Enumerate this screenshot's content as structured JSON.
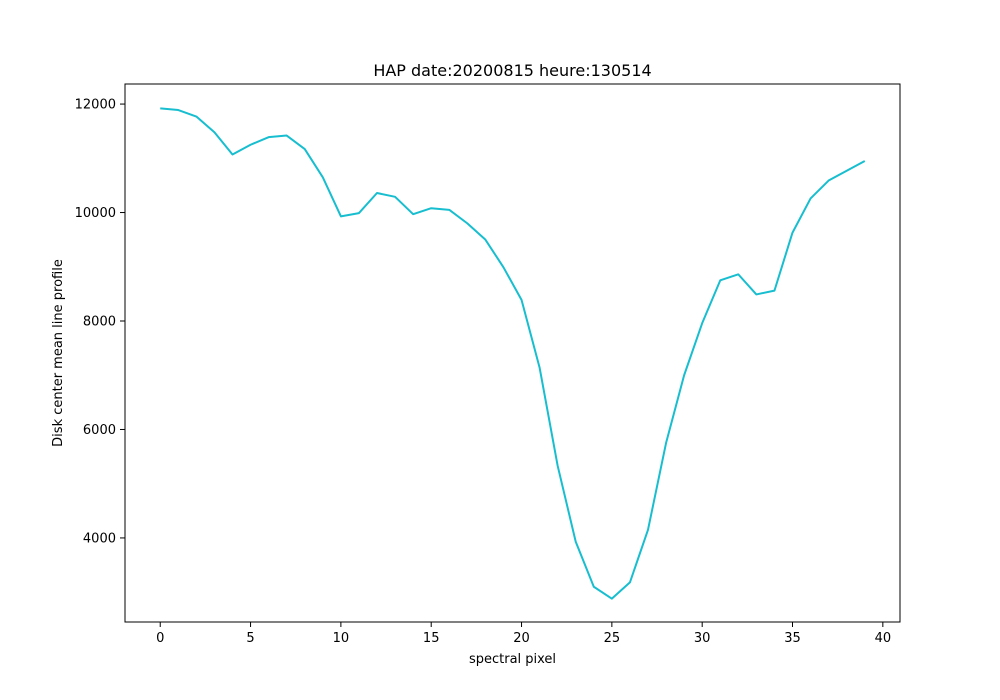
{
  "chart_data": {
    "type": "line",
    "title": "HAP date:20200815 heure:130514",
    "xlabel": "spectral pixel",
    "ylabel": "Disk center mean line profile",
    "xlim": [
      -1.95,
      40.95
    ],
    "ylim": [
      2450,
      12370
    ],
    "xticks": [
      0,
      5,
      10,
      15,
      20,
      25,
      30,
      35,
      40
    ],
    "yticks": [
      4000,
      6000,
      8000,
      10000,
      12000
    ],
    "grid": false,
    "legend": "none",
    "series": [
      {
        "color": "#17becf",
        "x": [
          0,
          1,
          2,
          3,
          4,
          5,
          6,
          7,
          8,
          9,
          10,
          11,
          12,
          13,
          14,
          15,
          16,
          17,
          18,
          19,
          20,
          21,
          22,
          23,
          24,
          25,
          26,
          27,
          28,
          29,
          30,
          31,
          32,
          33,
          34,
          35,
          36,
          37,
          38,
          39
        ],
        "values": [
          11920,
          11890,
          11770,
          11480,
          11070,
          11250,
          11390,
          11420,
          11170,
          10650,
          9930,
          9990,
          10360,
          10290,
          9970,
          10080,
          10050,
          9800,
          9500,
          8990,
          8390,
          7140,
          5330,
          3930,
          3100,
          2880,
          3180,
          4150,
          5750,
          7000,
          7960,
          8750,
          8860,
          8490,
          8560,
          9630,
          10260,
          10590,
          10770,
          10950
        ]
      }
    ]
  }
}
